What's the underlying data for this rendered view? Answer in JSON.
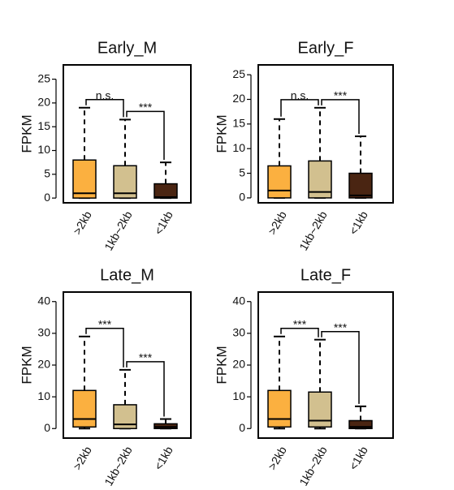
{
  "chart_data": [
    {
      "type": "box",
      "title": "Early_M",
      "ylabel": "FPKM",
      "categories": [
        ">2kb",
        "1kb~2kb",
        "<1kb"
      ],
      "colors": [
        "#fbb040",
        "#d2c08f",
        "#4a2512"
      ],
      "min": [
        0,
        0,
        0
      ],
      "q1": [
        0,
        0,
        0
      ],
      "median": [
        1,
        1,
        0.2
      ],
      "q3": [
        8,
        6.8,
        3
      ],
      "max": [
        19,
        16.5,
        7.5
      ],
      "annotations": [
        "n.s.",
        "***"
      ],
      "ylim": [
        -1,
        28
      ],
      "yticks": [
        0,
        5,
        10,
        15,
        20,
        25
      ]
    },
    {
      "type": "box",
      "title": "Early_F",
      "ylabel": "FPKM",
      "categories": [
        ">2kb",
        "1kb~2kb",
        "<1kb"
      ],
      "colors": [
        "#fbb040",
        "#d2c08f",
        "#4a2512"
      ],
      "min": [
        0,
        0,
        0
      ],
      "q1": [
        0,
        0,
        0
      ],
      "median": [
        1.5,
        1.2,
        0.5
      ],
      "q3": [
        6.5,
        7.5,
        5
      ],
      "max": [
        16,
        18.3,
        12.5
      ],
      "annotations": [
        "n.s.",
        "***"
      ],
      "ylim": [
        -1,
        27
      ],
      "yticks": [
        0,
        5,
        10,
        15,
        20,
        25
      ]
    },
    {
      "type": "box",
      "title": "Late_M",
      "ylabel": "FPKM",
      "categories": [
        ">2kb",
        "1kb~2kb",
        "<1kb"
      ],
      "colors": [
        "#fbb040",
        "#d2c08f",
        "#4a2512"
      ],
      "min": [
        0,
        0,
        0
      ],
      "q1": [
        0.5,
        0,
        0
      ],
      "median": [
        3,
        1.3,
        0.5
      ],
      "q3": [
        12,
        7.5,
        1.5
      ],
      "max": [
        29,
        18.5,
        3
      ],
      "annotations": [
        "***",
        "***"
      ],
      "ylim": [
        -3,
        43
      ],
      "yticks": [
        0,
        10,
        20,
        30,
        40
      ]
    },
    {
      "type": "box",
      "title": "Late_F",
      "ylabel": "FPKM",
      "categories": [
        ">2kb",
        "1kb~2kb",
        "<1kb"
      ],
      "colors": [
        "#fbb040",
        "#d2c08f",
        "#4a2512"
      ],
      "min": [
        0,
        0,
        0
      ],
      "q1": [
        0.5,
        0.5,
        0
      ],
      "median": [
        3,
        2.5,
        0.5
      ],
      "q3": [
        12,
        11.5,
        2.5
      ],
      "max": [
        29,
        28,
        7
      ],
      "annotations": [
        "***",
        "***"
      ],
      "ylim": [
        -3,
        43
      ],
      "yticks": [
        0,
        10,
        20,
        30,
        40
      ]
    }
  ]
}
